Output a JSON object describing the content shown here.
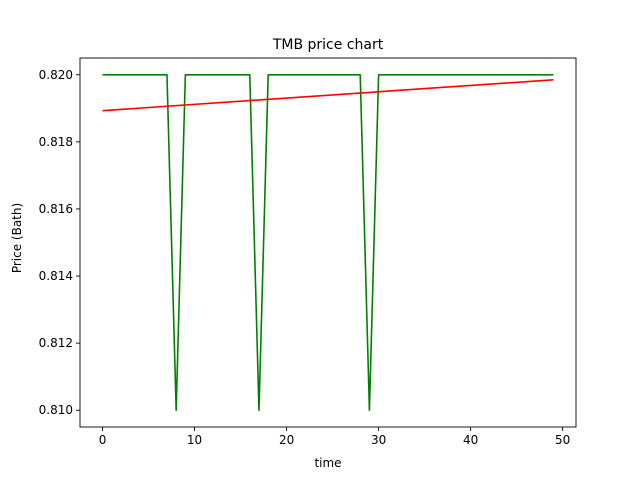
{
  "chart_data": {
    "type": "line",
    "title": "TMB price chart",
    "xlabel": "time",
    "ylabel": "Price (Bath)",
    "xlim": [
      -2.45,
      51.45
    ],
    "ylim": [
      0.8095,
      0.8205
    ],
    "xticks": [
      0,
      10,
      20,
      30,
      40,
      50
    ],
    "yticks": [
      0.81,
      0.812,
      0.814,
      0.816,
      0.818,
      0.82
    ],
    "ytick_labels": [
      "0.810",
      "0.812",
      "0.814",
      "0.816",
      "0.818",
      "0.820"
    ],
    "grid": false,
    "legend": "none",
    "series": [
      {
        "color": "#008000",
        "x": [
          0,
          1,
          2,
          3,
          4,
          5,
          6,
          7,
          8,
          9,
          10,
          11,
          12,
          13,
          14,
          15,
          16,
          17,
          18,
          19,
          20,
          21,
          22,
          23,
          24,
          25,
          26,
          27,
          28,
          29,
          30,
          31,
          32,
          33,
          34,
          35,
          36,
          37,
          38,
          39,
          40,
          41,
          42,
          43,
          44,
          45,
          46,
          47,
          48,
          49
        ],
        "y": [
          0.82,
          0.82,
          0.82,
          0.82,
          0.82,
          0.82,
          0.82,
          0.82,
          0.81,
          0.82,
          0.82,
          0.82,
          0.82,
          0.82,
          0.82,
          0.82,
          0.82,
          0.81,
          0.82,
          0.82,
          0.82,
          0.82,
          0.82,
          0.82,
          0.82,
          0.82,
          0.82,
          0.82,
          0.82,
          0.81,
          0.82,
          0.82,
          0.82,
          0.82,
          0.82,
          0.82,
          0.82,
          0.82,
          0.82,
          0.82,
          0.82,
          0.82,
          0.82,
          0.82,
          0.82,
          0.82,
          0.82,
          0.82,
          0.82,
          0.82
        ]
      },
      {
        "color": "#ff0000",
        "x": [
          0,
          49
        ],
        "y": [
          0.81893,
          0.81985
        ]
      }
    ]
  }
}
